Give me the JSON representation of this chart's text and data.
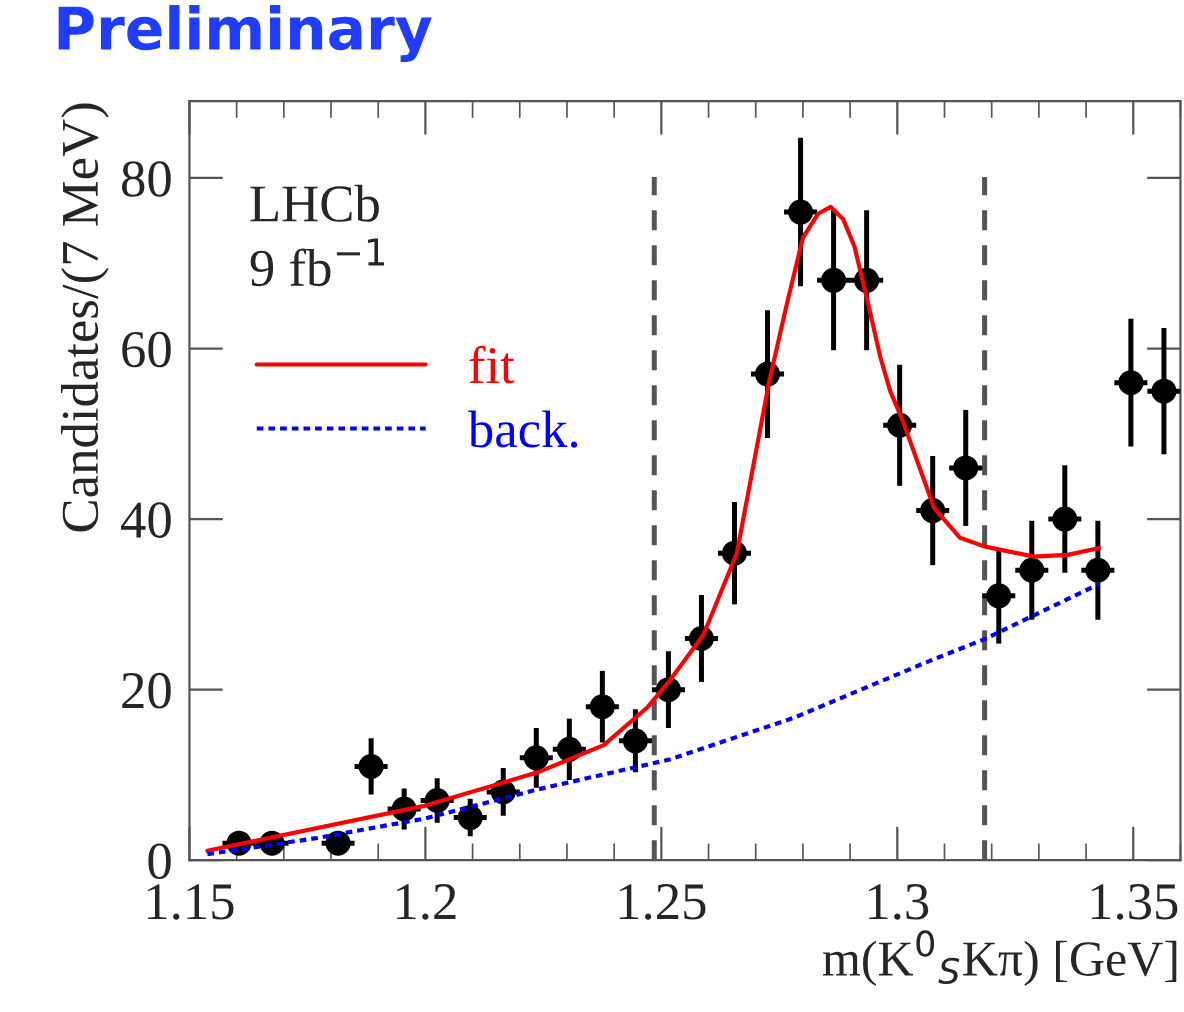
{
  "chart_data": {
    "type": "scatter",
    "title": "Preliminary",
    "xlabel": "m(K$^{0}$$_{S}$Kπ) [GeV]",
    "ylabel": "Candidates/(7 MeV)",
    "annotations": [
      "LHCb",
      "9 fb$^{−1}$"
    ],
    "xlim": [
      1.15,
      1.36
    ],
    "xticks": [
      1.15,
      1.2,
      1.25,
      1.3,
      1.35
    ],
    "ylim": [
      0,
      89
    ],
    "yticks": [
      0,
      20,
      40,
      60,
      80
    ],
    "grid": false,
    "legend": "top left",
    "series": [
      {
        "color": "#000000",
        "marker": "circle",
        "x": [
          1.1605,
          1.1675,
          1.1815,
          1.1885,
          1.1955,
          1.2025,
          1.2095,
          1.2165,
          1.2235,
          1.2305,
          1.2375,
          1.2445,
          1.2515,
          1.2585,
          1.2655,
          1.2725,
          1.2795,
          1.2865,
          1.2935,
          1.3005,
          1.3075,
          1.3145,
          1.3215,
          1.3285,
          1.3355,
          1.3425,
          1.3495,
          1.3565
        ],
        "values": [
          2,
          2,
          2,
          11,
          6,
          7,
          5,
          8,
          12,
          13,
          18,
          14,
          20,
          26,
          36,
          57,
          76,
          68,
          68,
          51,
          41,
          46,
          31,
          34,
          40,
          34,
          56,
          55
        ],
        "errors": [
          1.4,
          1.4,
          1.4,
          3.3,
          2.4,
          2.6,
          2.2,
          2.8,
          3.5,
          3.6,
          4.2,
          3.7,
          4.5,
          5.1,
          6,
          7.5,
          8.7,
          8.2,
          8.2,
          7.1,
          6.4,
          6.8,
          5.6,
          5.8,
          6.3,
          5.8,
          7.5,
          7.4
        ],
        "xerrors": [
          0.0035,
          0.0035,
          0.0035,
          0.0035,
          0.0035,
          0.0035,
          0.0035,
          0.0035,
          0.0035,
          0.0035,
          0.0035,
          0.0035,
          0.0035,
          0.0035,
          0.0035,
          0.0035,
          0.0035,
          0.0035,
          0.0035,
          0.0035,
          0.0035,
          0.0035,
          0.0035,
          0.0035,
          0.0035,
          0.0035,
          0.0035,
          0.0035
        ]
      },
      {
        "type": "line",
        "name": "fit",
        "color": "#ff0000",
        "line_style": "solid",
        "x": [
          1.1538,
          1.2,
          1.2238,
          1.2378,
          1.247,
          1.2517,
          1.2589,
          1.266,
          1.2728,
          1.2765,
          1.28,
          1.2832,
          1.2859,
          1.2885,
          1.2909,
          1.2935,
          1.2964,
          1.2985,
          1.3011,
          1.3078,
          1.3133,
          1.3184,
          1.3289,
          1.3361,
          1.3428
        ],
        "values": [
          1.1,
          6.4,
          10.3,
          13.5,
          17.9,
          21,
          26.4,
          36,
          56,
          65,
          73,
          75.8,
          76.6,
          75.2,
          72,
          66,
          59,
          55,
          51.6,
          41.3,
          37.8,
          36.8,
          35.6,
          35.8,
          36.6
        ]
      },
      {
        "type": "line",
        "name": "back.",
        "color": "#0000ff",
        "line_style": "dotted",
        "x": [
          1.1538,
          1.177,
          1.2,
          1.2238,
          1.2517,
          1.2781,
          1.3061,
          1.3184,
          1.3428
        ],
        "values": [
          0.7,
          2.6,
          4.9,
          8.3,
          11.8,
          16.7,
          23.2,
          25.9,
          32.4
        ]
      }
    ],
    "ref_lines": [
      {
        "axis": "x",
        "value": 1.2485,
        "color": "#555555",
        "line_style": "dashed"
      },
      {
        "axis": "x",
        "value": 1.3185,
        "color": "#555555",
        "line_style": "dashed"
      }
    ]
  }
}
